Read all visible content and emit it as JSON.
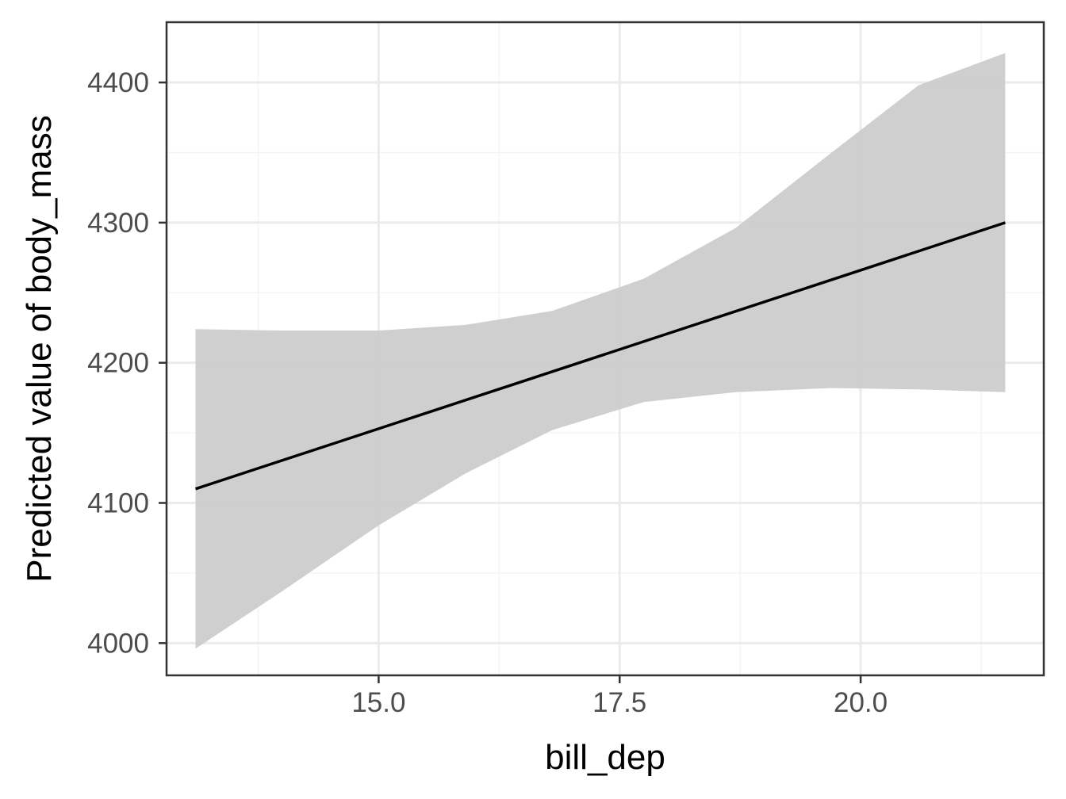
{
  "chart_data": {
    "type": "line",
    "title": "",
    "xlabel": "bill_dep",
    "ylabel": "Predicted value of body_mass",
    "xlim": [
      12.8,
      21.9
    ],
    "ylim": [
      3977,
      4443
    ],
    "x_ticks": [
      15.0,
      17.5,
      20.0
    ],
    "x_tick_labels": [
      "15.0",
      "17.5",
      "20.0"
    ],
    "x_minor_ticks": [
      13.75,
      16.25,
      18.75,
      21.25
    ],
    "y_ticks": [
      4000,
      4100,
      4200,
      4300,
      4400
    ],
    "y_tick_labels": [
      "4000",
      "4100",
      "4200",
      "4300",
      "4400"
    ],
    "y_minor_ticks": [
      4050,
      4150,
      4250,
      4350
    ],
    "grid": true,
    "legend": "none",
    "series": [
      {
        "x": [
          13.1,
          21.5
        ],
        "y": [
          4110,
          4300
        ]
      }
    ],
    "confidence_band": {
      "x": [
        13.1,
        14.0,
        15.0,
        15.9,
        16.8,
        17.75,
        18.7,
        19.7,
        20.6,
        21.5
      ],
      "lower": [
        3996,
        4037,
        4084,
        4121,
        4152,
        4172,
        4179,
        4182,
        4181,
        4179
      ],
      "upper": [
        4224,
        4223,
        4223,
        4227,
        4237,
        4260,
        4296,
        4350,
        4398,
        4421
      ]
    },
    "colors": {
      "line": "#000000",
      "band": "#cccccc",
      "grid_major": "#ebebeb",
      "grid_minor": "#f4f4f4",
      "panel_border": "#333333",
      "tick_text": "#4d4d4d"
    }
  }
}
